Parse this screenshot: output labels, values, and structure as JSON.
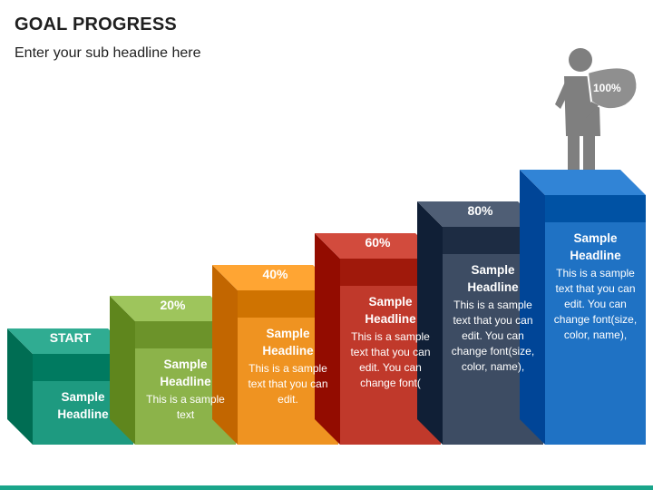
{
  "slide": {
    "title": "GOAL PROGRESS",
    "subtitle": "Enter your sub headline here"
  },
  "steps": [
    {
      "top_label": "START",
      "headline": "Sample Headline",
      "body": "",
      "color": "#1e9a80"
    },
    {
      "top_label": "20%",
      "headline": "Sample Headline",
      "body": "This is a sample text",
      "color": "#8cb34a"
    },
    {
      "top_label": "40%",
      "headline": "Sample Headline",
      "body": "This is a sample text that you can edit.",
      "color": "#ef9321"
    },
    {
      "top_label": "60%",
      "headline": "Sample Headline",
      "body": "This is a sample text that you can edit. You can change font(",
      "color": "#c0392b"
    },
    {
      "top_label": "80%",
      "headline": "Sample Headline",
      "body": "This is a sample text that you can edit. You can change font(size, color, name),",
      "color": "#3d4c63"
    },
    {
      "top_label": "",
      "headline": "Sample Headline",
      "body": "This is a sample text that you can edit. You can change font(size, color, name),",
      "color": "#1f72c4"
    }
  ],
  "figure": {
    "badge": "100%",
    "icon": "person-with-trophy-icon",
    "color": "#7f7f7f"
  },
  "accent_bar_color": "#1aa58a"
}
